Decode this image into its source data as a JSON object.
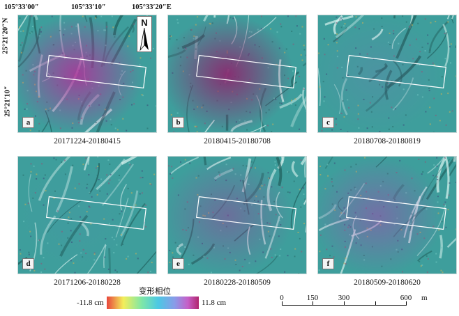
{
  "coords": {
    "top": [
      "105°33′00″",
      "105°33′10″",
      "105°33′20″E"
    ],
    "left": [
      "25°21′20″N",
      "25°21′10″"
    ]
  },
  "panels": [
    {
      "letter": "a",
      "caption": "20171224-20180415",
      "intensity": 0.85,
      "hue": "#b0309a"
    },
    {
      "letter": "b",
      "caption": "20180415-20180708",
      "intensity": 0.95,
      "hue": "#8a2a70"
    },
    {
      "letter": "c",
      "caption": "20180708-20180819",
      "intensity": 0.15,
      "hue": "#9c5ac0"
    },
    {
      "letter": "d",
      "caption": "20171206-20180228",
      "intensity": 0.05,
      "hue": "#7a6ad0"
    },
    {
      "letter": "e",
      "caption": "20180228-20180509",
      "intensity": 0.45,
      "hue": "#a0389a"
    },
    {
      "letter": "f",
      "caption": "20180509-20180620",
      "intensity": 0.5,
      "hue": "#a842b0"
    }
  ],
  "north": "N",
  "legend": {
    "title": "变形相位",
    "min": "-11.8 cm",
    "max": "11.8 cm"
  },
  "scale": {
    "labels": [
      "0",
      "150",
      "300",
      "600"
    ],
    "unit": "m"
  },
  "colors": {
    "teal_background": "#3e9e9c",
    "ridge": "#d6f2ee",
    "rectangle": "#ffffff"
  }
}
